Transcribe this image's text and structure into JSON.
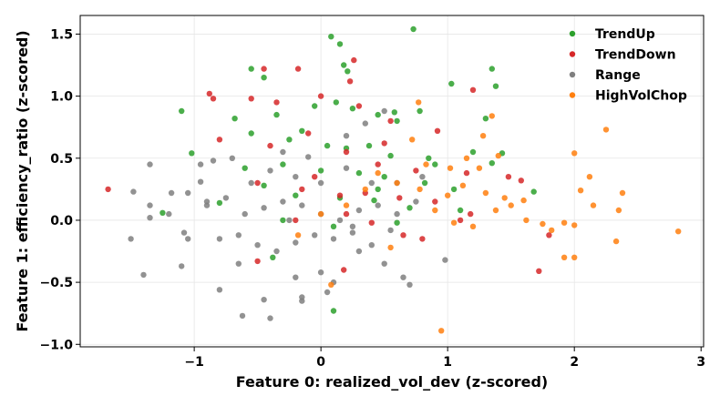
{
  "chart_data": {
    "type": "scatter",
    "title": "",
    "xlabel": "Feature 0: realized_vol_dev (z-scored)",
    "ylabel": "Feature 1: efficiency_ratio (z-scored)",
    "xlim": [
      -1.9,
      3.02
    ],
    "ylim": [
      -1.02,
      1.65
    ],
    "xticks": [
      -1,
      0,
      1,
      2,
      3
    ],
    "yticks": [
      -1.0,
      -0.5,
      0.0,
      0.5,
      1.0,
      1.5
    ],
    "xtick_labels": [
      "−1",
      "0",
      "1",
      "2",
      "3"
    ],
    "ytick_labels": [
      "−1.0",
      "−0.5",
      "0.0",
      "0.5",
      "1.0",
      "1.5"
    ],
    "grid": true,
    "legend_position": "top-right",
    "series": [
      {
        "name": "TrendUp",
        "color": "#2ca02c",
        "points": [
          [
            0.08,
            1.48
          ],
          [
            0.15,
            1.42
          ],
          [
            0.73,
            1.54
          ],
          [
            -0.55,
            1.22
          ],
          [
            -0.45,
            1.15
          ],
          [
            0.18,
            1.25
          ],
          [
            0.21,
            1.2
          ],
          [
            1.03,
            1.1
          ],
          [
            1.38,
            1.08
          ],
          [
            1.35,
            1.22
          ],
          [
            -1.1,
            0.88
          ],
          [
            -0.68,
            0.82
          ],
          [
            -0.35,
            0.85
          ],
          [
            -0.05,
            0.92
          ],
          [
            0.12,
            0.95
          ],
          [
            0.25,
            0.9
          ],
          [
            0.45,
            0.85
          ],
          [
            0.6,
            0.8
          ],
          [
            0.78,
            0.88
          ],
          [
            1.3,
            0.82
          ],
          [
            -0.55,
            0.7
          ],
          [
            -0.25,
            0.65
          ],
          [
            0.05,
            0.6
          ],
          [
            0.2,
            0.58
          ],
          [
            0.38,
            0.6
          ],
          [
            0.55,
            0.52
          ],
          [
            0.85,
            0.5
          ],
          [
            1.2,
            0.55
          ],
          [
            1.43,
            0.54
          ],
          [
            -1.02,
            0.54
          ],
          [
            -0.6,
            0.42
          ],
          [
            -0.3,
            0.45
          ],
          [
            0.0,
            0.4
          ],
          [
            0.3,
            0.38
          ],
          [
            0.5,
            0.35
          ],
          [
            0.82,
            0.3
          ],
          [
            1.05,
            0.25
          ],
          [
            1.35,
            0.46
          ],
          [
            -0.45,
            0.28
          ],
          [
            -0.2,
            0.2
          ],
          [
            0.15,
            0.18
          ],
          [
            0.42,
            0.16
          ],
          [
            0.7,
            0.1
          ],
          [
            1.1,
            0.08
          ],
          [
            1.68,
            0.23
          ],
          [
            -1.25,
            0.06
          ],
          [
            -0.8,
            0.14
          ],
          [
            -0.3,
            0.0
          ],
          [
            0.1,
            -0.05
          ],
          [
            0.6,
            -0.02
          ],
          [
            -0.38,
            -0.3
          ],
          [
            0.1,
            -0.73
          ],
          [
            0.45,
            0.25
          ],
          [
            0.9,
            0.45
          ],
          [
            -0.15,
            0.72
          ],
          [
            0.58,
            0.87
          ]
        ]
      },
      {
        "name": "TrendDown",
        "color": "#d62728",
        "points": [
          [
            -1.68,
            0.25
          ],
          [
            -0.88,
            1.02
          ],
          [
            -0.85,
            0.98
          ],
          [
            -0.45,
            1.22
          ],
          [
            -0.18,
            1.22
          ],
          [
            0.26,
            1.29
          ],
          [
            0.23,
            1.12
          ],
          [
            -0.55,
            0.98
          ],
          [
            -0.35,
            0.95
          ],
          [
            0.0,
            1.0
          ],
          [
            0.3,
            0.92
          ],
          [
            0.55,
            0.8
          ],
          [
            0.92,
            0.72
          ],
          [
            1.2,
            1.05
          ],
          [
            -0.8,
            0.65
          ],
          [
            -0.4,
            0.6
          ],
          [
            -0.1,
            0.7
          ],
          [
            0.2,
            0.55
          ],
          [
            0.45,
            0.45
          ],
          [
            0.75,
            0.4
          ],
          [
            1.15,
            0.38
          ],
          [
            1.48,
            0.35
          ],
          [
            1.58,
            0.32
          ],
          [
            -0.5,
            0.3
          ],
          [
            -0.15,
            0.25
          ],
          [
            0.15,
            0.2
          ],
          [
            0.35,
            0.22
          ],
          [
            0.62,
            0.18
          ],
          [
            0.9,
            0.15
          ],
          [
            1.18,
            0.05
          ],
          [
            -0.2,
            0.0
          ],
          [
            0.2,
            0.05
          ],
          [
            0.4,
            -0.02
          ],
          [
            0.65,
            -0.12
          ],
          [
            0.8,
            -0.15
          ],
          [
            1.1,
            0.0
          ],
          [
            1.8,
            -0.12
          ],
          [
            1.72,
            -0.41
          ],
          [
            -0.5,
            -0.33
          ],
          [
            0.18,
            -0.4
          ],
          [
            0.5,
            0.62
          ],
          [
            -0.05,
            0.35
          ]
        ]
      },
      {
        "name": "Range",
        "color": "#7f7f7f",
        "points": [
          [
            -1.35,
            0.45
          ],
          [
            -1.48,
            0.23
          ],
          [
            -1.35,
            0.12
          ],
          [
            -1.18,
            0.22
          ],
          [
            -1.05,
            0.22
          ],
          [
            -0.95,
            0.45
          ],
          [
            -0.85,
            0.48
          ],
          [
            -0.7,
            0.5
          ],
          [
            -0.55,
            0.3
          ],
          [
            -0.4,
            0.4
          ],
          [
            -0.2,
            0.35
          ],
          [
            0.0,
            0.3
          ],
          [
            0.2,
            0.42
          ],
          [
            0.4,
            0.3
          ],
          [
            0.6,
            0.3
          ],
          [
            0.8,
            0.35
          ],
          [
            -1.35,
            0.02
          ],
          [
            -1.2,
            0.05
          ],
          [
            -1.08,
            -0.1
          ],
          [
            -0.9,
            0.12
          ],
          [
            -0.75,
            0.18
          ],
          [
            -0.6,
            0.05
          ],
          [
            -0.45,
            0.1
          ],
          [
            -0.3,
            0.15
          ],
          [
            -0.15,
            0.12
          ],
          [
            0.0,
            0.05
          ],
          [
            0.15,
            0.0
          ],
          [
            0.3,
            0.08
          ],
          [
            0.45,
            0.12
          ],
          [
            0.6,
            0.05
          ],
          [
            0.75,
            0.15
          ],
          [
            -1.5,
            -0.15
          ],
          [
            -1.1,
            -0.37
          ],
          [
            -1.05,
            -0.15
          ],
          [
            -0.8,
            -0.15
          ],
          [
            -0.65,
            -0.12
          ],
          [
            -0.5,
            -0.2
          ],
          [
            -0.35,
            -0.25
          ],
          [
            -0.2,
            -0.18
          ],
          [
            -0.05,
            -0.12
          ],
          [
            0.1,
            -0.15
          ],
          [
            0.25,
            -0.1
          ],
          [
            0.4,
            -0.2
          ],
          [
            0.55,
            -0.08
          ],
          [
            -1.4,
            -0.44
          ],
          [
            -0.8,
            -0.56
          ],
          [
            -0.65,
            -0.35
          ],
          [
            -0.45,
            -0.64
          ],
          [
            -0.4,
            -0.79
          ],
          [
            -0.2,
            -0.46
          ],
          [
            -0.15,
            -0.62
          ],
          [
            0.0,
            -0.42
          ],
          [
            0.1,
            -0.5
          ],
          [
            0.65,
            -0.46
          ],
          [
            0.98,
            -0.32
          ],
          [
            -0.62,
            -0.77
          ],
          [
            -0.15,
            -0.65
          ],
          [
            0.05,
            -0.58
          ],
          [
            0.3,
            -0.25
          ],
          [
            0.5,
            -0.35
          ],
          [
            0.7,
            -0.52
          ],
          [
            -0.95,
            0.31
          ],
          [
            -0.1,
            0.51
          ],
          [
            0.2,
            0.68
          ],
          [
            0.35,
            0.78
          ],
          [
            0.5,
            0.88
          ],
          [
            -0.3,
            0.55
          ],
          [
            -0.9,
            0.15
          ],
          [
            0.25,
            -0.05
          ],
          [
            -0.25,
            0.0
          ]
        ]
      },
      {
        "name": "HighVolChop",
        "color": "#ff7f0e",
        "points": [
          [
            0.77,
            0.95
          ],
          [
            1.35,
            0.84
          ],
          [
            0.72,
            0.65
          ],
          [
            1.28,
            0.68
          ],
          [
            0.83,
            0.45
          ],
          [
            1.02,
            0.42
          ],
          [
            1.25,
            0.42
          ],
          [
            1.4,
            0.52
          ],
          [
            0.45,
            0.38
          ],
          [
            0.6,
            0.3
          ],
          [
            0.78,
            0.25
          ],
          [
            1.0,
            0.2
          ],
          [
            1.12,
            0.28
          ],
          [
            1.3,
            0.22
          ],
          [
            1.45,
            0.18
          ],
          [
            1.6,
            0.16
          ],
          [
            2.0,
            0.54
          ],
          [
            2.12,
            0.35
          ],
          [
            2.05,
            0.24
          ],
          [
            2.25,
            0.73
          ],
          [
            2.38,
            0.22
          ],
          [
            2.35,
            0.08
          ],
          [
            0.9,
            0.08
          ],
          [
            1.05,
            -0.02
          ],
          [
            1.2,
            -0.05
          ],
          [
            1.38,
            0.08
          ],
          [
            1.5,
            0.12
          ],
          [
            1.75,
            -0.03
          ],
          [
            1.92,
            -0.02
          ],
          [
            2.0,
            -0.04
          ],
          [
            2.15,
            0.12
          ],
          [
            2.82,
            -0.09
          ],
          [
            2.33,
            -0.17
          ],
          [
            1.92,
            -0.3
          ],
          [
            2.0,
            -0.3
          ],
          [
            0.55,
            -0.22
          ],
          [
            0.08,
            -0.52
          ],
          [
            0.0,
            0.05
          ],
          [
            -0.18,
            -0.12
          ],
          [
            0.95,
            -0.89
          ],
          [
            0.35,
            0.25
          ],
          [
            1.15,
            0.5
          ],
          [
            1.82,
            -0.08
          ],
          [
            1.62,
            0.0
          ],
          [
            0.2,
            0.12
          ]
        ]
      }
    ]
  }
}
